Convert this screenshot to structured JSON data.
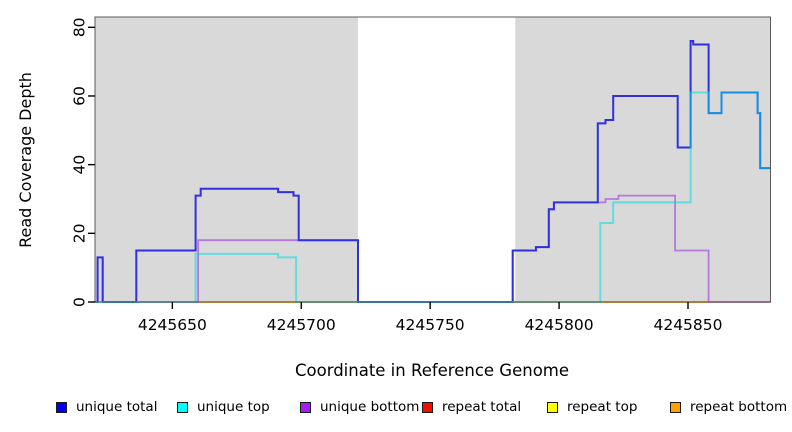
{
  "chart_data": {
    "type": "line",
    "subtype": "step-coverage",
    "title": "",
    "xlabel": "Coordinate in Reference Genome",
    "ylabel": "Read Coverage Depth",
    "xlim": [
      4245620,
      4245882
    ],
    "ylim": [
      0,
      83
    ],
    "x_ticks": [
      4245650,
      4245700,
      4245750,
      4245800,
      4245850
    ],
    "y_ticks": [
      0,
      20,
      40,
      60,
      80
    ],
    "grid": false,
    "plot_background": "#d9d9d9",
    "page_background": "#ffffff",
    "box_color": "#5a5a5a",
    "highlight_band": {
      "x_start": 4245722,
      "x_end": 4245783,
      "color": "#ffffff"
    },
    "series": [
      {
        "name": "repeat total",
        "color": "#cf5068",
        "opacity": 1,
        "width": 1.8,
        "steps": [
          [
            4245636,
            0
          ]
        ],
        "x_end": 4245882
      },
      {
        "name": "repeat top",
        "color": "#ffe400",
        "opacity": 1,
        "width": 1.5,
        "steps": [
          [
            4245660,
            0
          ]
        ],
        "x_end": 4245882
      },
      {
        "name": "repeat bottom",
        "color": "#ff9d1c",
        "opacity": 1,
        "width": 2,
        "steps": [
          [
            4245660,
            0
          ]
        ],
        "x_end": 4245882
      },
      {
        "name": "unique bottom",
        "color": "#b678dd",
        "opacity": 1,
        "width": 1.8,
        "steps": [
          [
            4245620,
            0
          ],
          [
            4245621,
            13
          ],
          [
            4245623,
            0
          ],
          [
            4245660,
            18
          ],
          [
            4245722,
            0
          ],
          [
            4245782,
            15
          ],
          [
            4245791,
            16
          ],
          [
            4245796,
            27
          ],
          [
            4245798,
            29
          ],
          [
            4245818,
            30
          ],
          [
            4245823,
            31
          ],
          [
            4245845,
            15
          ],
          [
            4245858,
            0
          ]
        ],
        "x_end": 4245882
      },
      {
        "name": "unique total",
        "color": "#3030e0",
        "opacity": 1,
        "width": 2,
        "steps": [
          [
            4245620,
            0
          ],
          [
            4245621,
            13
          ],
          [
            4245623,
            0
          ],
          [
            4245636,
            15
          ],
          [
            4245659,
            31
          ],
          [
            4245661,
            33
          ],
          [
            4245691,
            32
          ],
          [
            4245697,
            31
          ],
          [
            4245699,
            18
          ],
          [
            4245722,
            0
          ],
          [
            4245782,
            15
          ],
          [
            4245791,
            16
          ],
          [
            4245796,
            27
          ],
          [
            4245798,
            29
          ],
          [
            4245815,
            52
          ],
          [
            4245818,
            53
          ],
          [
            4245821,
            60
          ],
          [
            4245846,
            45
          ],
          [
            4245851,
            76
          ],
          [
            4245852,
            75
          ],
          [
            4245858,
            55
          ],
          [
            4245863,
            61
          ],
          [
            4245877,
            55
          ],
          [
            4245878,
            39
          ]
        ],
        "x_end": 4245882
      },
      {
        "name": "unique top",
        "color": "#00dede",
        "opacity": 0.55,
        "width": 2,
        "steps": [
          [
            4245620,
            0
          ],
          [
            4245659,
            14
          ],
          [
            4245691,
            13
          ],
          [
            4245698,
            0
          ],
          [
            4245816,
            23
          ],
          [
            4245821,
            29
          ],
          [
            4245851,
            61
          ],
          [
            4245858,
            55
          ],
          [
            4245863,
            61
          ],
          [
            4245877,
            55
          ],
          [
            4245878,
            39
          ]
        ],
        "x_end": 4245882
      }
    ]
  },
  "legend": {
    "items": [
      {
        "label": "unique total",
        "color": "#0000ee"
      },
      {
        "label": "unique top",
        "color": "#00ffff"
      },
      {
        "label": "unique bottom",
        "color": "#a020f0"
      },
      {
        "label": "repeat total",
        "color": "#ee1100"
      },
      {
        "label": "repeat top",
        "color": "#ffff00"
      },
      {
        "label": "repeat bottom",
        "color": "#ffa200"
      }
    ]
  }
}
